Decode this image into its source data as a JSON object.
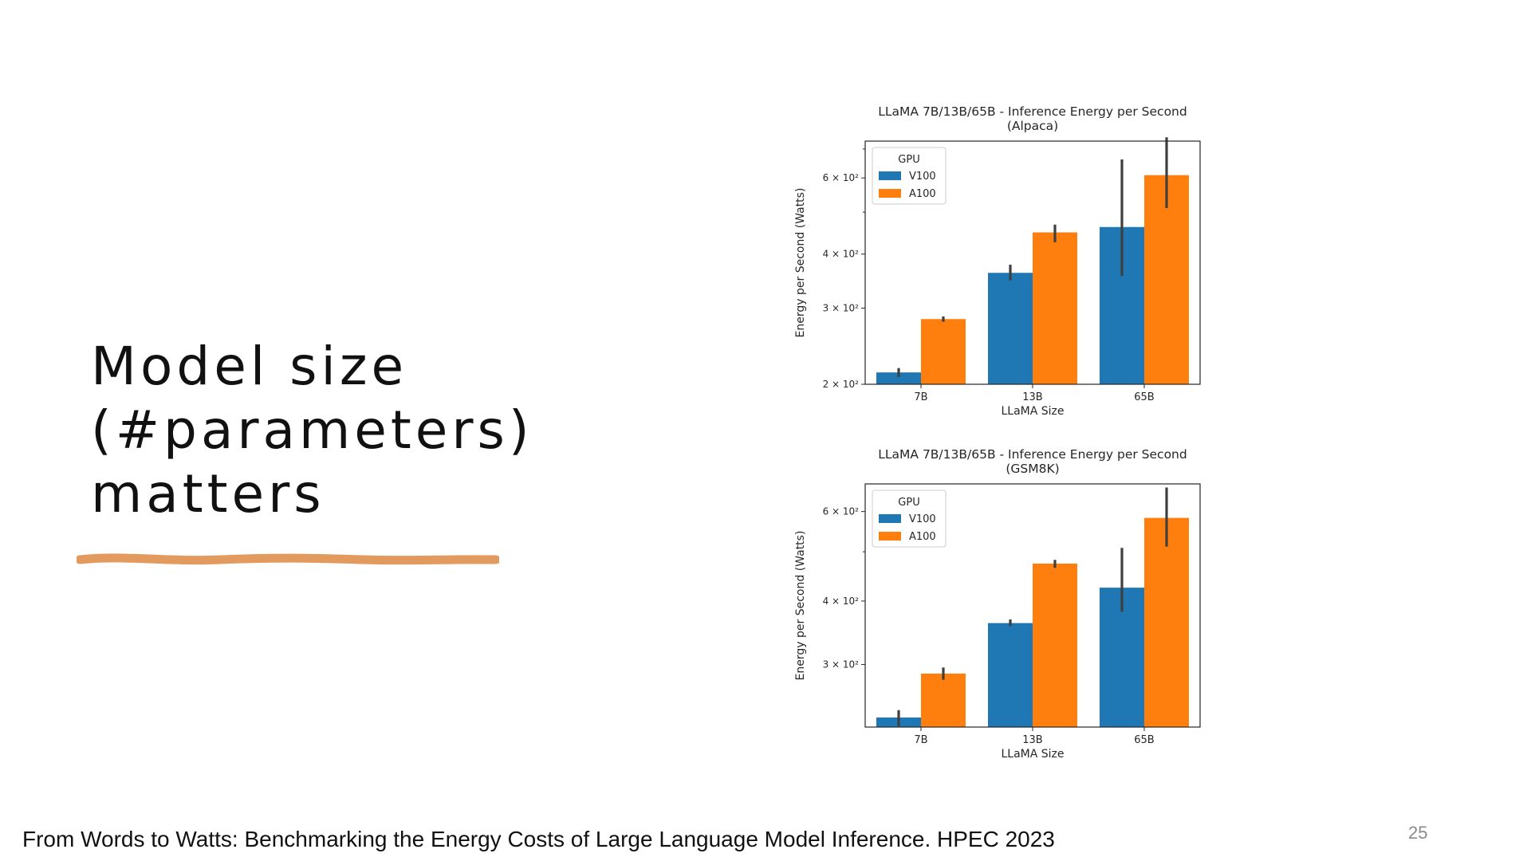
{
  "slide": {
    "title_lines": [
      "Model size",
      "(#parameters)",
      "matters"
    ],
    "underline_color": "#E39A5E",
    "citation": "From Words to Watts: Benchmarking the Energy Costs of Large Language Model Inference. HPEC 2023",
    "page_number": "25"
  },
  "chart_data": [
    {
      "type": "bar",
      "title": "LLaMA 7B/13B/65B - Inference Energy per Second",
      "subtitle": "(Alpaca)",
      "xlabel": "LLaMA Size",
      "ylabel": "Energy per Second (Watts)",
      "yscale": "log",
      "ylim": [
        200,
        730
      ],
      "yticks": [
        {
          "value": 200,
          "label": "2 × 10²"
        },
        {
          "value": 300,
          "label": "3 × 10²"
        },
        {
          "value": 400,
          "label": "4 × 10²"
        },
        {
          "value": 600,
          "label": "6 × 10²"
        }
      ],
      "minor_yticks": [
        500,
        700
      ],
      "categories": [
        "7B",
        "13B",
        "65B"
      ],
      "legend": {
        "title": "GPU",
        "position": "top-left"
      },
      "series": [
        {
          "name": "V100",
          "color": "#1F77B4",
          "values": [
            213,
            362,
            462
          ],
          "err_low": [
            208,
            348,
            356
          ],
          "err_high": [
            218,
            378,
            662
          ]
        },
        {
          "name": "A100",
          "color": "#FF7F0E",
          "values": [
            283,
            449,
            609
          ],
          "err_low": [
            279,
            426,
            511
          ],
          "err_high": [
            287,
            468,
            745
          ]
        }
      ]
    },
    {
      "type": "bar",
      "title": "LLaMA 7B/13B/65B - Inference Energy per Second",
      "subtitle": "(GSM8K)",
      "xlabel": "LLaMA Size",
      "ylabel": "Energy per Second (Watts)",
      "yscale": "log",
      "ylim": [
        226,
        680
      ],
      "yticks": [
        {
          "value": 300,
          "label": "3 × 10²"
        },
        {
          "value": 400,
          "label": "4 × 10²"
        },
        {
          "value": 600,
          "label": "6 × 10²"
        }
      ],
      "minor_yticks": [
        500
      ],
      "categories": [
        "7B",
        "13B",
        "65B"
      ],
      "legend": {
        "title": "GPU",
        "position": "top-left"
      },
      "series": [
        {
          "name": "V100",
          "color": "#1F77B4",
          "values": [
            236,
            362,
            425
          ],
          "err_low": [
            227,
            357,
            381
          ],
          "err_high": [
            244,
            368,
            509
          ]
        },
        {
          "name": "A100",
          "color": "#FF7F0E",
          "values": [
            288,
            474,
            583
          ],
          "err_low": [
            280,
            465,
            512
          ],
          "err_high": [
            296,
            482,
            669
          ]
        }
      ]
    }
  ]
}
